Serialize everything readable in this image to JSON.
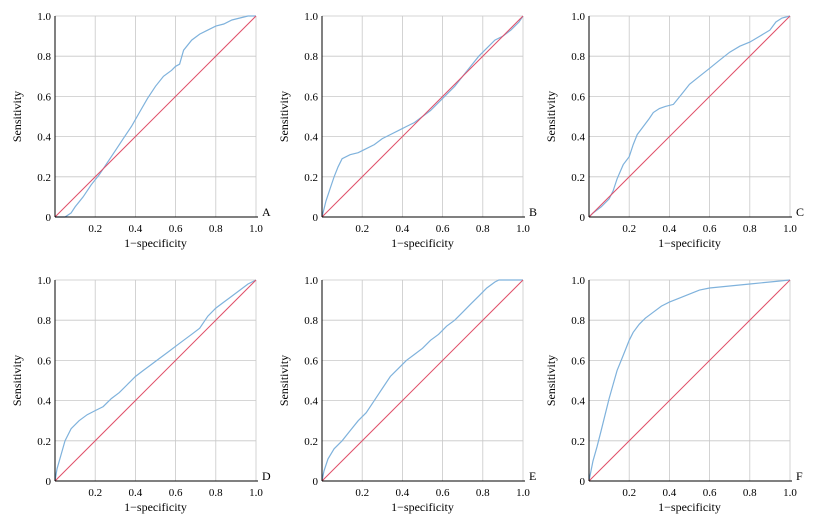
{
  "chart_data": [
    {
      "type": "line",
      "panel_label": "A",
      "xlabel": "1−specificity",
      "ylabel": "Sensitivity",
      "xlim": [
        0,
        1
      ],
      "ylim": [
        0,
        1
      ],
      "xticks": [
        "0.2",
        "0.4",
        "0.6",
        "0.8",
        "1.0"
      ],
      "yticks": [
        "0",
        "0.2",
        "0.4",
        "0.6",
        "0.8",
        "1.0"
      ],
      "grid": true,
      "series": [
        {
          "color": "#7fb2dc",
          "x": [
            0,
            0.05,
            0.08,
            0.1,
            0.14,
            0.18,
            0.22,
            0.26,
            0.3,
            0.34,
            0.38,
            0.42,
            0.46,
            0.5,
            0.54,
            0.58,
            0.6,
            0.62,
            0.64,
            0.68,
            0.72,
            0.76,
            0.8,
            0.84,
            0.88,
            0.92,
            0.96,
            1.0
          ],
          "y": [
            0,
            0,
            0.02,
            0.05,
            0.1,
            0.16,
            0.21,
            0.27,
            0.33,
            0.39,
            0.45,
            0.52,
            0.59,
            0.65,
            0.7,
            0.73,
            0.75,
            0.76,
            0.83,
            0.88,
            0.91,
            0.93,
            0.95,
            0.96,
            0.98,
            0.99,
            1.0,
            1.0
          ]
        },
        {
          "color": "#e0506a",
          "x": [
            0,
            1
          ],
          "y": [
            0,
            1
          ]
        }
      ]
    },
    {
      "type": "line",
      "panel_label": "B",
      "xlabel": "1−specificity",
      "ylabel": "Sensitivity",
      "xlim": [
        0,
        1
      ],
      "ylim": [
        0,
        1
      ],
      "xticks": [
        "0.2",
        "0.4",
        "0.6",
        "0.8",
        "1.0"
      ],
      "yticks": [
        "0",
        "0.2",
        "0.4",
        "0.6",
        "0.8",
        "1.0"
      ],
      "grid": true,
      "series": [
        {
          "color": "#7fb2dc",
          "x": [
            0,
            0.01,
            0.02,
            0.04,
            0.06,
            0.08,
            0.1,
            0.14,
            0.18,
            0.22,
            0.26,
            0.3,
            0.34,
            0.38,
            0.42,
            0.46,
            0.5,
            0.54,
            0.58,
            0.62,
            0.66,
            0.7,
            0.74,
            0.78,
            0.82,
            0.86,
            0.9,
            0.94,
            0.98,
            1.0
          ],
          "y": [
            0,
            0.04,
            0.08,
            0.14,
            0.2,
            0.25,
            0.29,
            0.31,
            0.32,
            0.34,
            0.36,
            0.39,
            0.41,
            0.43,
            0.45,
            0.47,
            0.5,
            0.53,
            0.57,
            0.61,
            0.65,
            0.7,
            0.75,
            0.8,
            0.84,
            0.88,
            0.9,
            0.93,
            0.97,
            1.0
          ]
        },
        {
          "color": "#e0506a",
          "x": [
            0,
            1
          ],
          "y": [
            0,
            1
          ]
        }
      ]
    },
    {
      "type": "line",
      "panel_label": "C",
      "xlabel": "1−specificity",
      "ylabel": "Sensitivity",
      "xlim": [
        0,
        1
      ],
      "ylim": [
        0,
        1
      ],
      "xticks": [
        "0.2",
        "0.4",
        "0.6",
        "0.8",
        "1.0"
      ],
      "yticks": [
        "0",
        "0.2",
        "0.4",
        "0.6",
        "0.8",
        "1.0"
      ],
      "grid": true,
      "series": [
        {
          "color": "#7fb2dc",
          "x": [
            0,
            0.02,
            0.06,
            0.1,
            0.12,
            0.14,
            0.17,
            0.2,
            0.22,
            0.24,
            0.27,
            0.3,
            0.32,
            0.35,
            0.38,
            0.42,
            0.46,
            0.5,
            0.55,
            0.6,
            0.65,
            0.7,
            0.75,
            0.8,
            0.85,
            0.9,
            0.93,
            0.96,
            1.0
          ],
          "y": [
            0,
            0.02,
            0.05,
            0.09,
            0.13,
            0.19,
            0.26,
            0.3,
            0.36,
            0.41,
            0.45,
            0.49,
            0.52,
            0.54,
            0.55,
            0.56,
            0.61,
            0.66,
            0.7,
            0.74,
            0.78,
            0.82,
            0.85,
            0.87,
            0.9,
            0.93,
            0.97,
            0.99,
            1.0
          ]
        },
        {
          "color": "#e0506a",
          "x": [
            0,
            1
          ],
          "y": [
            0,
            1
          ]
        }
      ]
    },
    {
      "type": "line",
      "panel_label": "D",
      "xlabel": "1−specificity",
      "ylabel": "Sensitivity",
      "xlim": [
        0,
        1
      ],
      "ylim": [
        0,
        1
      ],
      "xticks": [
        "0.2",
        "0.4",
        "0.6",
        "0.8",
        "1.0"
      ],
      "yticks": [
        "0",
        "0.2",
        "0.4",
        "0.6",
        "0.8",
        "1.0"
      ],
      "grid": true,
      "series": [
        {
          "color": "#7fb2dc",
          "x": [
            0,
            0.01,
            0.03,
            0.05,
            0.08,
            0.12,
            0.16,
            0.2,
            0.24,
            0.28,
            0.32,
            0.36,
            0.4,
            0.44,
            0.48,
            0.52,
            0.56,
            0.6,
            0.64,
            0.68,
            0.72,
            0.76,
            0.8,
            0.84,
            0.88,
            0.92,
            0.96,
            1.0
          ],
          "y": [
            0,
            0.06,
            0.13,
            0.2,
            0.26,
            0.3,
            0.33,
            0.35,
            0.37,
            0.41,
            0.44,
            0.48,
            0.52,
            0.55,
            0.58,
            0.61,
            0.64,
            0.67,
            0.7,
            0.73,
            0.76,
            0.82,
            0.86,
            0.89,
            0.92,
            0.95,
            0.98,
            1.0
          ]
        },
        {
          "color": "#e0506a",
          "x": [
            0,
            1
          ],
          "y": [
            0,
            1
          ]
        }
      ]
    },
    {
      "type": "line",
      "panel_label": "E",
      "xlabel": "1−specificity",
      "ylabel": "Sensitivity",
      "xlim": [
        0,
        1
      ],
      "ylim": [
        0,
        1
      ],
      "xticks": [
        "0.2",
        "0.4",
        "0.6",
        "0.8",
        "1.0"
      ],
      "yticks": [
        "0",
        "0.2",
        "0.4",
        "0.6",
        "0.8",
        "1.0"
      ],
      "grid": true,
      "series": [
        {
          "color": "#7fb2dc",
          "x": [
            0,
            0.01,
            0.03,
            0.06,
            0.1,
            0.14,
            0.18,
            0.22,
            0.26,
            0.3,
            0.34,
            0.38,
            0.42,
            0.46,
            0.5,
            0.54,
            0.58,
            0.62,
            0.66,
            0.7,
            0.74,
            0.78,
            0.82,
            0.86,
            0.88,
            0.9,
            1.0
          ],
          "y": [
            0,
            0.05,
            0.11,
            0.16,
            0.2,
            0.25,
            0.3,
            0.34,
            0.4,
            0.46,
            0.52,
            0.56,
            0.6,
            0.63,
            0.66,
            0.7,
            0.73,
            0.77,
            0.8,
            0.84,
            0.88,
            0.92,
            0.96,
            0.99,
            1.0,
            1.0,
            1.0
          ]
        },
        {
          "color": "#e0506a",
          "x": [
            0,
            1
          ],
          "y": [
            0,
            1
          ]
        }
      ]
    },
    {
      "type": "line",
      "panel_label": "F",
      "xlabel": "1−specificity",
      "ylabel": "Sensitivity",
      "xlim": [
        0,
        1
      ],
      "ylim": [
        0,
        1
      ],
      "xticks": [
        "0.2",
        "0.4",
        "0.6",
        "0.8",
        "1.0"
      ],
      "yticks": [
        "0",
        "0.2",
        "0.4",
        "0.6",
        "0.8",
        "1.0"
      ],
      "grid": true,
      "series": [
        {
          "color": "#7fb2dc",
          "x": [
            0,
            0.01,
            0.02,
            0.04,
            0.06,
            0.08,
            0.1,
            0.12,
            0.14,
            0.16,
            0.18,
            0.2,
            0.22,
            0.25,
            0.28,
            0.32,
            0.36,
            0.4,
            0.45,
            0.5,
            0.55,
            0.6,
            0.7,
            0.8,
            0.9,
            1.0
          ],
          "y": [
            0,
            0.05,
            0.1,
            0.17,
            0.25,
            0.33,
            0.41,
            0.48,
            0.55,
            0.6,
            0.65,
            0.7,
            0.74,
            0.78,
            0.81,
            0.84,
            0.87,
            0.89,
            0.91,
            0.93,
            0.95,
            0.96,
            0.97,
            0.98,
            0.99,
            1.0
          ]
        },
        {
          "color": "#e0506a",
          "x": [
            0,
            1
          ],
          "y": [
            0,
            1
          ]
        }
      ]
    }
  ]
}
